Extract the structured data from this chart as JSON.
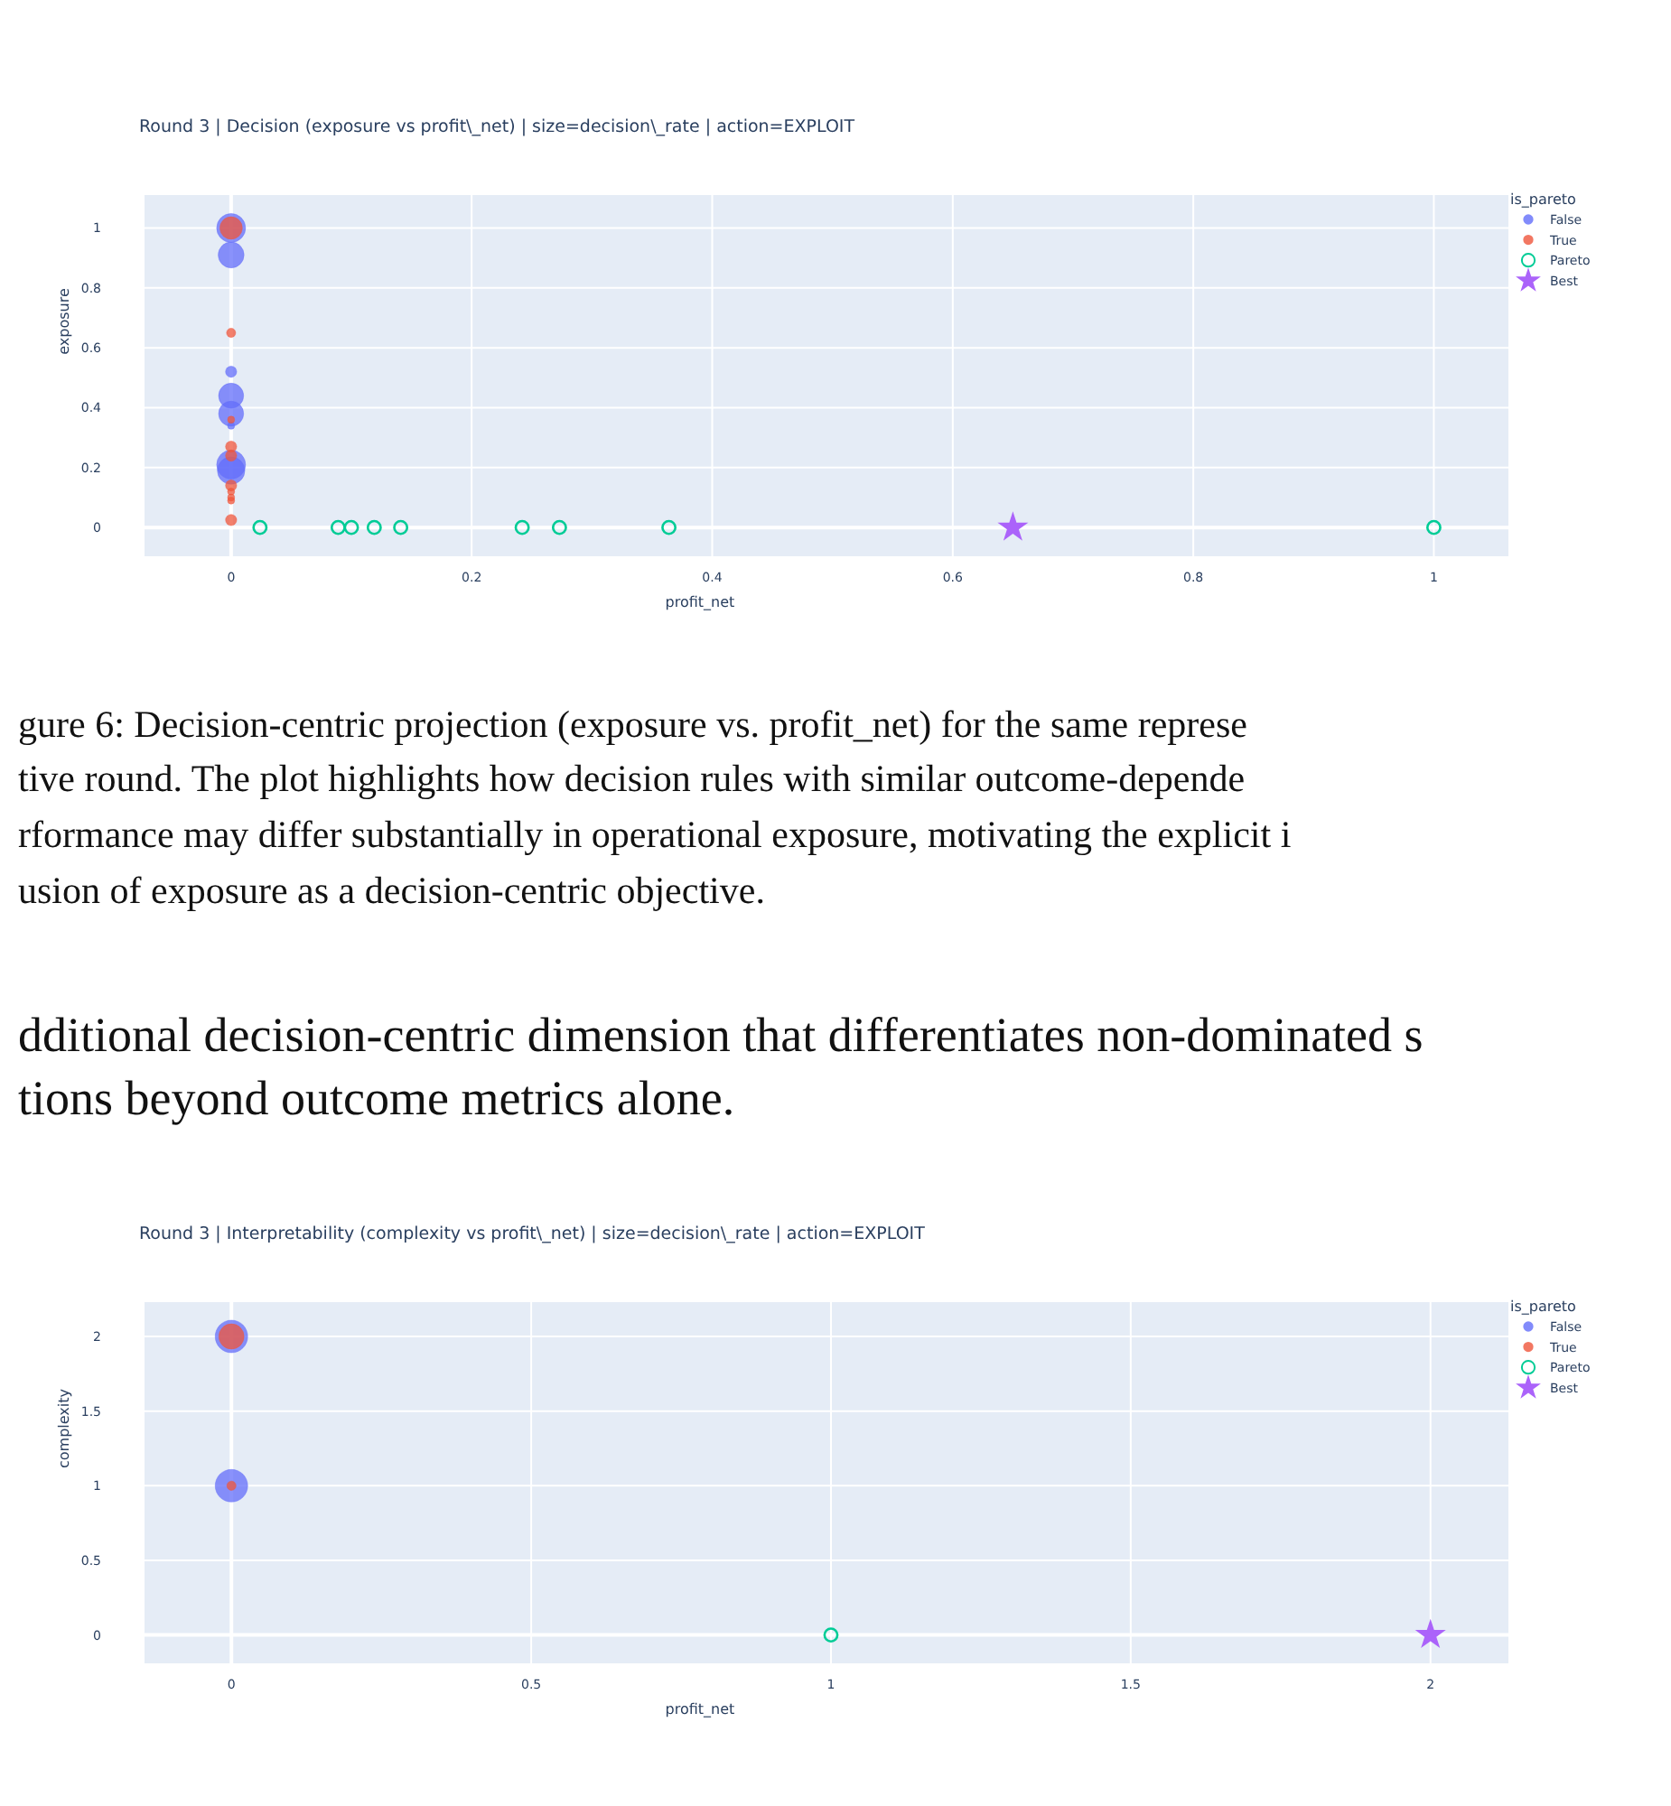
{
  "chart_data": [
    {
      "type": "bubble",
      "title": "Round 3 | Decision (exposure vs profit\\_net) | size=decision\\_rate | action=EXPLOIT",
      "xlabel": "profit_net",
      "ylabel": "exposure",
      "legend_title": "is_pareto",
      "legend": "top right",
      "grid": true,
      "xlim": [
        -0.072,
        1.062
      ],
      "ylim": [
        -0.096,
        1.11
      ],
      "xticks": [
        0,
        0.2,
        0.4,
        0.6,
        0.8,
        1
      ],
      "yticks": [
        0,
        0.2,
        0.4,
        0.6,
        0.8,
        1
      ],
      "series": [
        {
          "name": "False",
          "type": "bubble",
          "color": "#636efa",
          "marker": "circle",
          "x": [
            0,
            0,
            0,
            0,
            0,
            0,
            0,
            0
          ],
          "values": [
            1,
            0.91,
            0.52,
            0.44,
            0.38,
            0.34,
            0.21,
            0.19
          ],
          "sizes": [
            1,
            0.8,
            0.15,
            0.75,
            0.75,
            0.06,
            1,
            0.9
          ]
        },
        {
          "name": "True",
          "type": "bubble",
          "color": "#ef553b",
          "marker": "circle",
          "x": [
            0,
            0,
            0,
            0,
            0,
            0,
            0,
            0,
            0,
            0
          ],
          "values": [
            1,
            0.65,
            0.36,
            0.27,
            0.24,
            0.14,
            0.12,
            0.1,
            0.09,
            0.025
          ],
          "sizes": [
            0.6,
            0.1,
            0.06,
            0.15,
            0.15,
            0.15,
            0.06,
            0.06,
            0.06,
            0.15
          ]
        },
        {
          "name": "Pareto",
          "type": "scatter",
          "color": "#00cc96",
          "marker": "circle",
          "x": [
            0.024,
            0.089,
            0.1,
            0.119,
            0.141,
            0.242,
            0.273,
            0.364,
            1
          ],
          "values": [
            0,
            0,
            0,
            0,
            0,
            0,
            0,
            0,
            0
          ]
        },
        {
          "name": "Best",
          "type": "scatter",
          "color": "#ab63fa",
          "marker": "star",
          "x": [
            0.65
          ],
          "values": [
            0
          ]
        }
      ],
      "annotations": [
        "gure 6: Decision-centric projection (exposure vs. profit_net) for the same represe",
        "tive round.  The plot highlights how decision rules with similar outcome-depende",
        "rformance may differ substantially in operational exposure, motivating the explicit i",
        "usion of exposure as a decision-centric objective.",
        "dditional decision-centric dimension that differentiates non-dominated s",
        "tions beyond outcome metrics alone."
      ]
    },
    {
      "type": "bubble",
      "title": "Round 3 | Interpretability (complexity vs profit\\_net) | size=decision\\_rate | action=EXPLOIT",
      "xlabel": "profit_net",
      "ylabel": "complexity",
      "legend_title": "is_pareto",
      "legend": "top right",
      "grid": true,
      "xlim": [
        -0.145,
        2.13
      ],
      "ylim": [
        -0.19,
        2.23
      ],
      "xticks": [
        0,
        0.5,
        1,
        1.5,
        2
      ],
      "yticks": [
        0,
        0.5,
        1,
        1.5,
        2
      ],
      "series": [
        {
          "name": "False",
          "type": "bubble",
          "color": "#636efa",
          "marker": "circle",
          "x": [
            0,
            0
          ],
          "values": [
            2,
            1
          ],
          "sizes": [
            1,
            1
          ]
        },
        {
          "name": "True",
          "type": "bubble",
          "color": "#ef553b",
          "marker": "circle",
          "x": [
            0,
            0
          ],
          "values": [
            2,
            1
          ],
          "sizes": [
            0.6,
            0.08
          ]
        },
        {
          "name": "Pareto",
          "type": "scatter",
          "color": "#00cc96",
          "marker": "circle",
          "x": [
            1
          ],
          "values": [
            0
          ]
        },
        {
          "name": "Best",
          "type": "scatter",
          "color": "#ab63fa",
          "marker": "star",
          "x": [
            2
          ],
          "values": [
            0
          ]
        }
      ]
    }
  ]
}
